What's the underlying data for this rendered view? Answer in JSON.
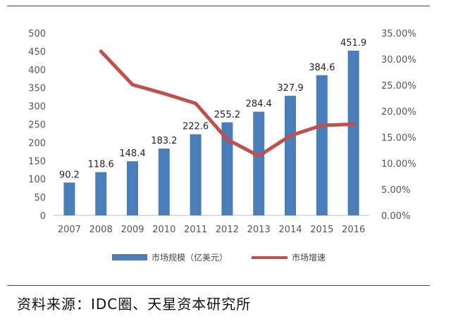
{
  "chart_data": {
    "type": "bar",
    "categories": [
      "2007",
      "2008",
      "2009",
      "2010",
      "2011",
      "2012",
      "2013",
      "2014",
      "2015",
      "2016"
    ],
    "series": [
      {
        "name": "市场规模（亿美元）",
        "type": "bar",
        "axis": "left",
        "values": [
          90.2,
          118.6,
          148.4,
          183.2,
          222.6,
          255.2,
          284.4,
          327.9,
          384.6,
          451.9
        ],
        "data_labels": [
          "90.2",
          "118.6",
          "148.4",
          "183.2",
          "222.6",
          "255.2",
          "284.4",
          "327.9",
          "384.6",
          "451.9"
        ],
        "color": "#4a7ebb"
      },
      {
        "name": "市场增速",
        "type": "line",
        "axis": "right",
        "values": [
          null,
          31.5,
          25.1,
          23.4,
          21.5,
          14.6,
          11.4,
          15.3,
          17.3,
          17.5
        ],
        "color": "#c0504d"
      }
    ],
    "ylim": [
      0,
      500
    ],
    "yticks": [
      "0",
      "50",
      "100",
      "150",
      "200",
      "250",
      "300",
      "350",
      "400",
      "450",
      "500"
    ],
    "y2lim": [
      0,
      35
    ],
    "y2ticks": [
      "0.00%",
      "5.00%",
      "10.00%",
      "15.00%",
      "20.00%",
      "25.00%",
      "30.00%",
      "35.00%"
    ],
    "legend_position": "bottom",
    "grid": false
  },
  "source_text": "资料来源：IDC圈、天星资本研究所"
}
